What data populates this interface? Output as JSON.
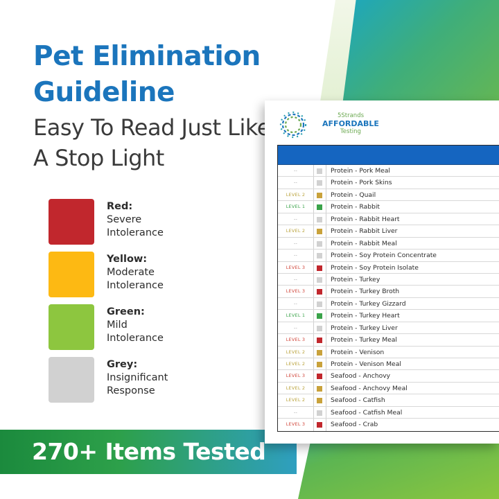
{
  "colors": {
    "blue": "#1b75bc",
    "red": "#c1272d",
    "yellow": "#fdb913",
    "green": "#8dc63f",
    "grey": "#d1d1d1",
    "level_red_text": "#d0453a",
    "level_yellow_text": "#b9a23a",
    "level_green_text": "#3aa34a",
    "level_grey_text": "#9a9a9a"
  },
  "headline": "Pet Elimination Guideline",
  "subhead": "Easy To Read Just Like A Stop Light",
  "legend": [
    {
      "name": "Red:",
      "desc": "Severe\nIntolerance",
      "color": "#c1272d"
    },
    {
      "name": "Yellow:",
      "desc": "Moderate\nIntolerance",
      "color": "#fdb913"
    },
    {
      "name": "Green:",
      "desc": "Mild\nIntolerance",
      "color": "#8dc63f"
    },
    {
      "name": "Grey:",
      "desc": "Insignificant\nResponse",
      "color": "#d1d1d1"
    }
  ],
  "banner": "270+ Items Tested",
  "logo": {
    "line1": "5Strands",
    "line2": "AFFORDABLE",
    "line3": "Testing",
    "icon": "dna-ring-logo"
  },
  "rows": [
    {
      "level": "--",
      "status": "grey",
      "category": "Protein",
      "item": "Pork Meal"
    },
    {
      "level": "--",
      "status": "grey",
      "category": "Protein",
      "item": "Pork Skins"
    },
    {
      "level": "LEVEL 2",
      "status": "yellow",
      "category": "Protein",
      "item": "Quail"
    },
    {
      "level": "LEVEL 1",
      "status": "green",
      "category": "Protein",
      "item": "Rabbit"
    },
    {
      "level": "--",
      "status": "grey",
      "category": "Protein",
      "item": "Rabbit Heart"
    },
    {
      "level": "LEVEL 2",
      "status": "yellow",
      "category": "Protein",
      "item": "Rabbit Liver"
    },
    {
      "level": "--",
      "status": "grey",
      "category": "Protein",
      "item": "Rabbit Meal"
    },
    {
      "level": "--",
      "status": "grey",
      "category": "Protein",
      "item": "Soy Protein Concentrate"
    },
    {
      "level": "LEVEL 3",
      "status": "red",
      "category": "Protein",
      "item": "Soy Protein Isolate"
    },
    {
      "level": "--",
      "status": "grey",
      "category": "Protein",
      "item": "Turkey"
    },
    {
      "level": "LEVEL 3",
      "status": "red",
      "category": "Protein",
      "item": "Turkey Broth"
    },
    {
      "level": "--",
      "status": "grey",
      "category": "Protein",
      "item": "Turkey Gizzard"
    },
    {
      "level": "LEVEL 1",
      "status": "green",
      "category": "Protein",
      "item": "Turkey Heart"
    },
    {
      "level": "--",
      "status": "grey",
      "category": "Protein",
      "item": "Turkey Liver"
    },
    {
      "level": "LEVEL 3",
      "status": "red",
      "category": "Protein",
      "item": "Turkey Meal"
    },
    {
      "level": "LEVEL 2",
      "status": "yellow",
      "category": "Protein",
      "item": "Venison"
    },
    {
      "level": "LEVEL 2",
      "status": "yellow",
      "category": "Protein",
      "item": "Venison Meal"
    },
    {
      "level": "LEVEL 3",
      "status": "red",
      "category": "Seafood",
      "item": "Anchovy"
    },
    {
      "level": "LEVEL 2",
      "status": "yellow",
      "category": "Seafood",
      "item": "Anchovy Meal"
    },
    {
      "level": "LEVEL 2",
      "status": "yellow",
      "category": "Seafood",
      "item": "Catfish"
    },
    {
      "level": "--",
      "status": "grey",
      "category": "Seafood",
      "item": "Catfish Meal"
    },
    {
      "level": "LEVEL 3",
      "status": "red",
      "category": "Seafood",
      "item": "Crab"
    }
  ]
}
